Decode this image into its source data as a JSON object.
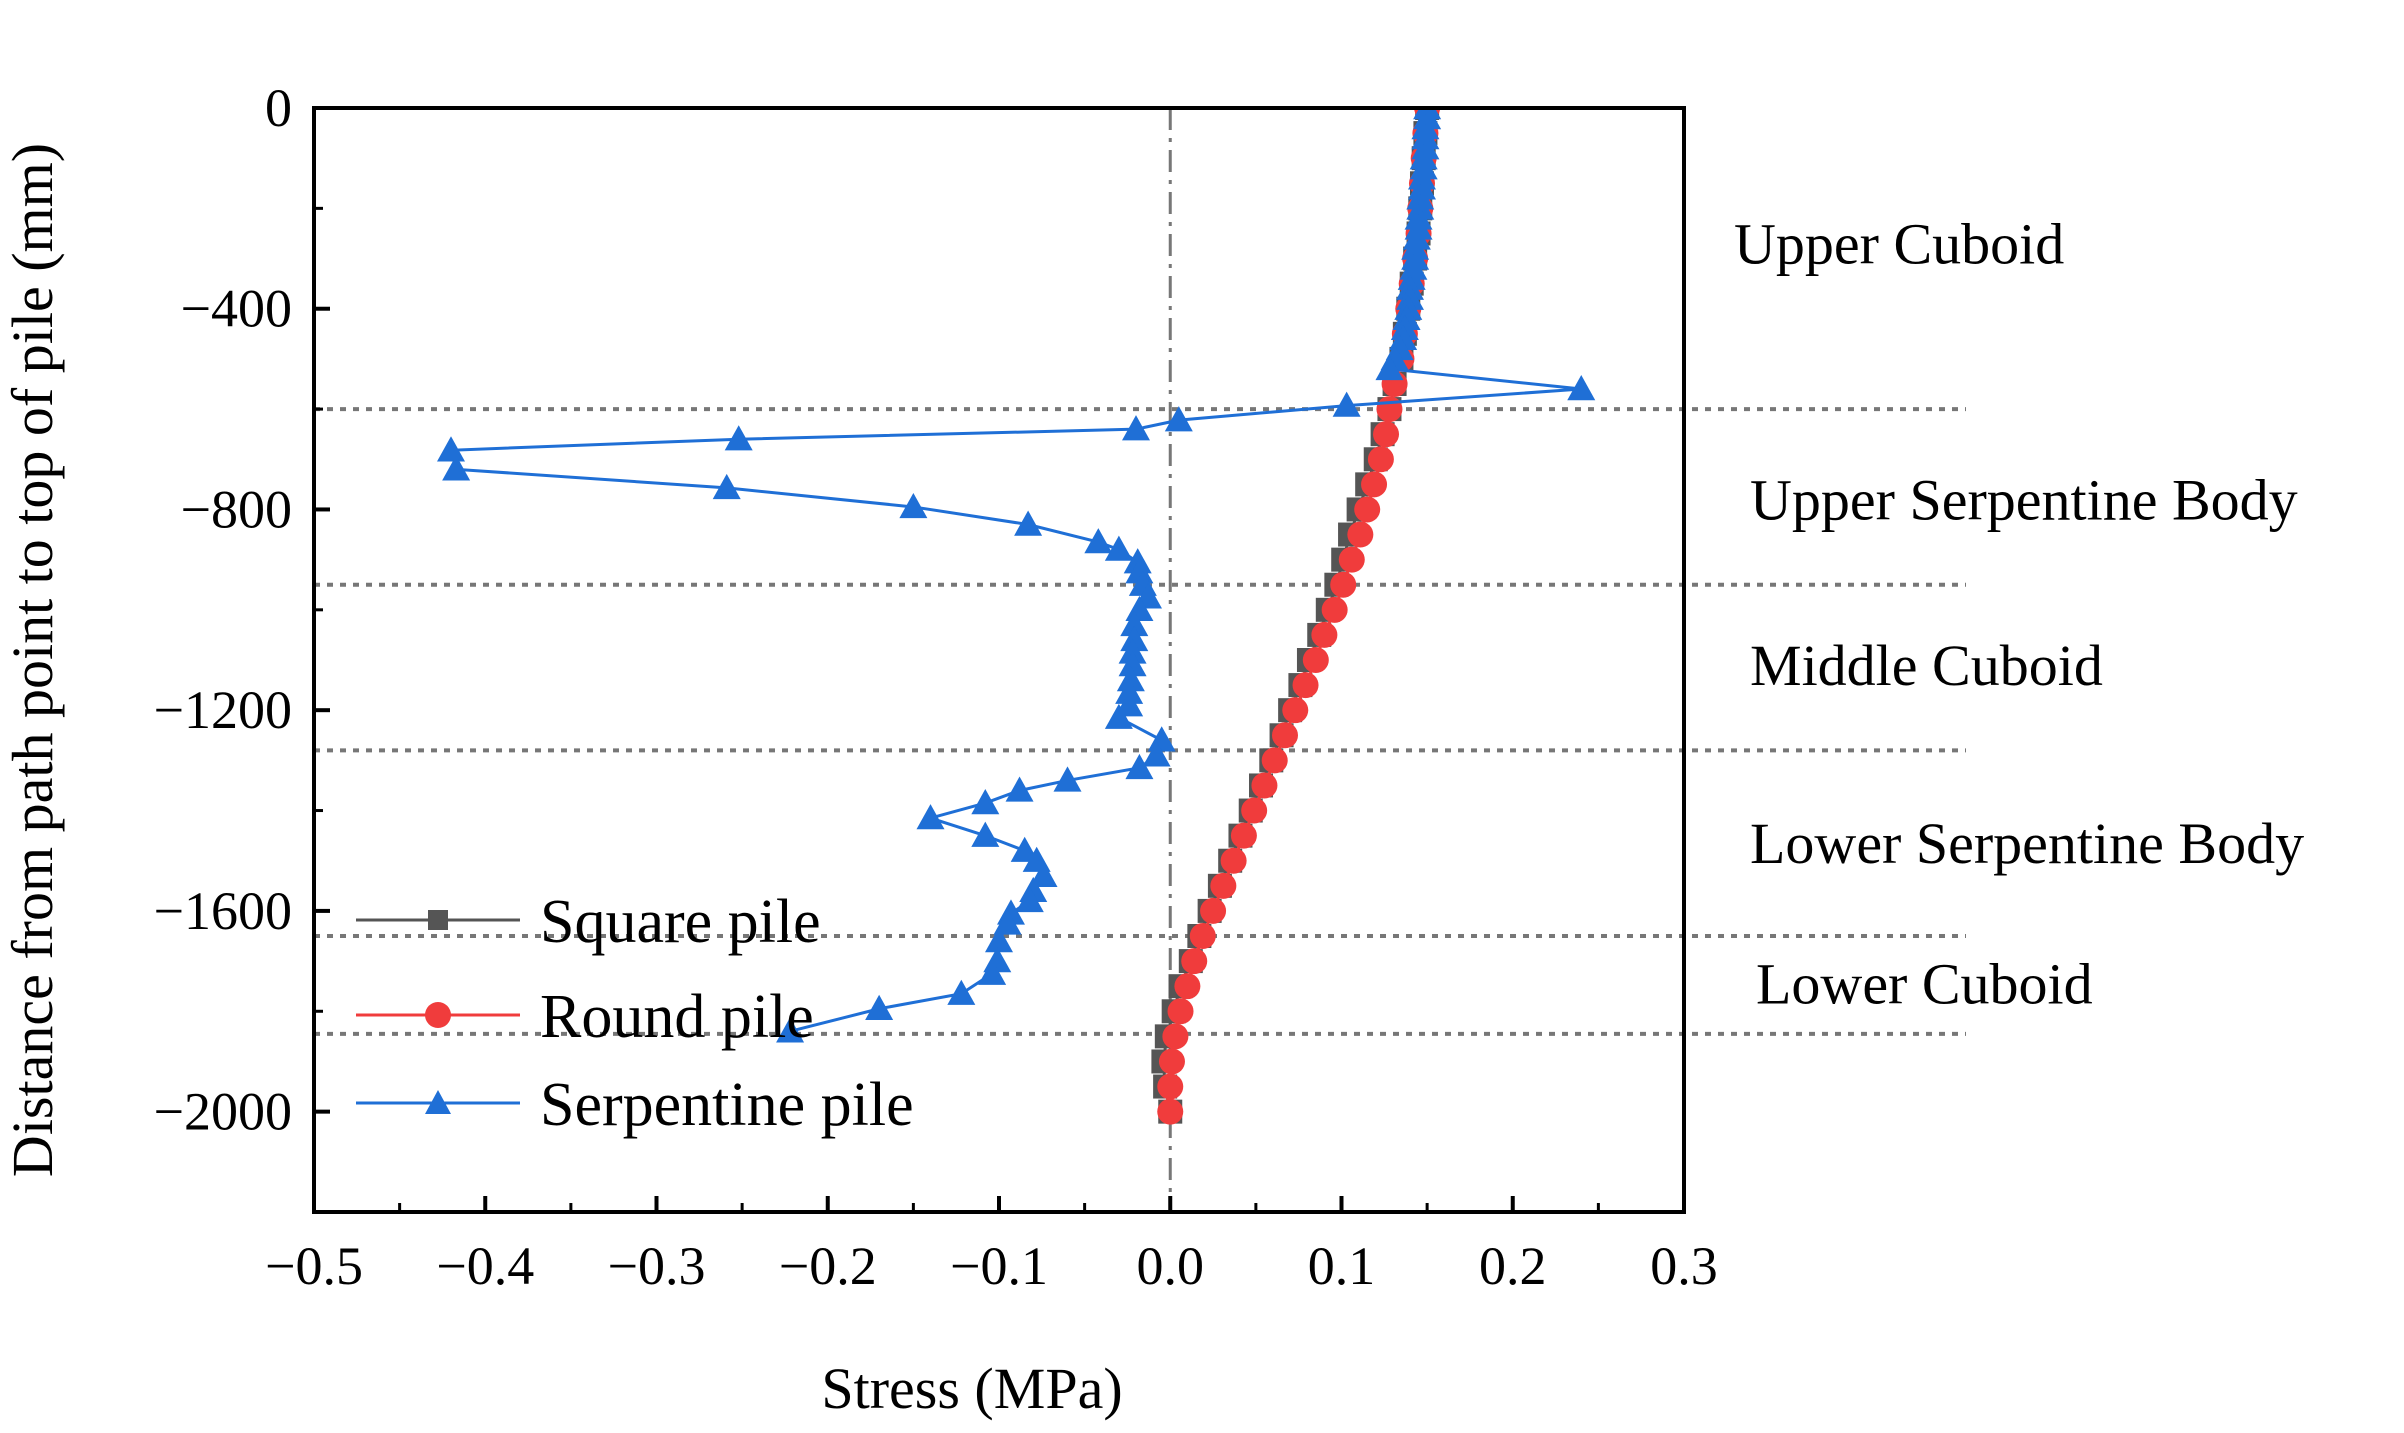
{
  "chart_data": {
    "type": "line",
    "title": "",
    "xlabel": "Stress (MPa)",
    "ylabel": "Distance from path point to top of pile (mm)",
    "xlim": [
      -0.5,
      0.3
    ],
    "ylim": [
      -2200,
      0
    ],
    "xticks": [
      -0.5,
      -0.4,
      -0.3,
      -0.2,
      -0.1,
      0.0,
      0.1,
      0.2,
      0.3
    ],
    "xtick_labels": [
      "−0.5",
      "−0.4",
      "−0.3",
      "−0.2",
      "−0.1",
      "0.0",
      "0.1",
      "0.2",
      "0.3"
    ],
    "yticks": [
      0,
      -400,
      -800,
      -1200,
      -1600,
      -2000
    ],
    "ytick_labels": [
      "0",
      "−400",
      "−800",
      "−1200",
      "−1600",
      "−2000"
    ],
    "reference_line_x": 0.0,
    "region_boundaries": [
      -600,
      -950,
      -1280,
      -1650,
      -1845
    ],
    "regions": [
      {
        "label": "Upper Cuboid",
        "y": -270
      },
      {
        "label": "Upper Serpentine Body",
        "y": -780
      },
      {
        "label": "Middle Cuboid",
        "y": -1110
      },
      {
        "label": "Lower Serpentine Body",
        "y": -1465
      },
      {
        "label": "Lower Cuboid",
        "y": -1745
      }
    ],
    "legend": {
      "position": "bottom-left"
    },
    "series": [
      {
        "name": "Square pile",
        "color": "#555555",
        "marker": "square",
        "points": [
          [
            0.15,
            0
          ],
          [
            0.149,
            -50
          ],
          [
            0.148,
            -100
          ],
          [
            0.147,
            -150
          ],
          [
            0.146,
            -200
          ],
          [
            0.145,
            -250
          ],
          [
            0.143,
            -300
          ],
          [
            0.141,
            -350
          ],
          [
            0.139,
            -400
          ],
          [
            0.137,
            -450
          ],
          [
            0.135,
            -500
          ],
          [
            0.131,
            -550
          ],
          [
            0.128,
            -600
          ],
          [
            0.124,
            -650
          ],
          [
            0.12,
            -700
          ],
          [
            0.115,
            -750
          ],
          [
            0.11,
            -800
          ],
          [
            0.105,
            -850
          ],
          [
            0.101,
            -900
          ],
          [
            0.097,
            -950
          ],
          [
            0.092,
            -1000
          ],
          [
            0.087,
            -1050
          ],
          [
            0.081,
            -1100
          ],
          [
            0.076,
            -1150
          ],
          [
            0.07,
            -1200
          ],
          [
            0.065,
            -1250
          ],
          [
            0.059,
            -1300
          ],
          [
            0.053,
            -1350
          ],
          [
            0.047,
            -1400
          ],
          [
            0.041,
            -1450
          ],
          [
            0.035,
            -1500
          ],
          [
            0.029,
            -1550
          ],
          [
            0.023,
            -1600
          ],
          [
            0.017,
            -1650
          ],
          [
            0.012,
            -1700
          ],
          [
            0.006,
            -1750
          ],
          [
            0.002,
            -1800
          ],
          [
            -0.002,
            -1850
          ],
          [
            -0.004,
            -1900
          ],
          [
            -0.003,
            -1950
          ],
          [
            0.0,
            -2000
          ]
        ]
      },
      {
        "name": "Round pile",
        "color": "#f03c3c",
        "marker": "circle",
        "points": [
          [
            0.15,
            0
          ],
          [
            0.149,
            -50
          ],
          [
            0.148,
            -100
          ],
          [
            0.147,
            -150
          ],
          [
            0.146,
            -200
          ],
          [
            0.145,
            -250
          ],
          [
            0.143,
            -300
          ],
          [
            0.141,
            -350
          ],
          [
            0.139,
            -400
          ],
          [
            0.137,
            -450
          ],
          [
            0.135,
            -500
          ],
          [
            0.131,
            -550
          ],
          [
            0.128,
            -600
          ],
          [
            0.126,
            -650
          ],
          [
            0.123,
            -700
          ],
          [
            0.119,
            -750
          ],
          [
            0.115,
            -800
          ],
          [
            0.111,
            -850
          ],
          [
            0.106,
            -900
          ],
          [
            0.101,
            -950
          ],
          [
            0.096,
            -1000
          ],
          [
            0.09,
            -1050
          ],
          [
            0.085,
            -1100
          ],
          [
            0.079,
            -1150
          ],
          [
            0.073,
            -1200
          ],
          [
            0.067,
            -1250
          ],
          [
            0.061,
            -1300
          ],
          [
            0.055,
            -1350
          ],
          [
            0.049,
            -1400
          ],
          [
            0.043,
            -1450
          ],
          [
            0.037,
            -1500
          ],
          [
            0.031,
            -1550
          ],
          [
            0.025,
            -1600
          ],
          [
            0.019,
            -1650
          ],
          [
            0.014,
            -1700
          ],
          [
            0.01,
            -1750
          ],
          [
            0.006,
            -1800
          ],
          [
            0.003,
            -1850
          ],
          [
            0.001,
            -1900
          ],
          [
            0.0,
            -1950
          ],
          [
            0.0,
            -2000
          ]
        ]
      },
      {
        "name": "Serpentine pile",
        "color": "#1f6fd6",
        "marker": "triangle",
        "points": [
          [
            0.15,
            0
          ],
          [
            0.15,
            -20
          ],
          [
            0.149,
            -40
          ],
          [
            0.149,
            -60
          ],
          [
            0.149,
            -80
          ],
          [
            0.148,
            -100
          ],
          [
            0.148,
            -120
          ],
          [
            0.147,
            -140
          ],
          [
            0.147,
            -160
          ],
          [
            0.146,
            -180
          ],
          [
            0.146,
            -200
          ],
          [
            0.145,
            -220
          ],
          [
            0.145,
            -240
          ],
          [
            0.144,
            -260
          ],
          [
            0.143,
            -280
          ],
          [
            0.143,
            -300
          ],
          [
            0.142,
            -320
          ],
          [
            0.141,
            -340
          ],
          [
            0.14,
            -360
          ],
          [
            0.14,
            -380
          ],
          [
            0.139,
            -400
          ],
          [
            0.138,
            -420
          ],
          [
            0.137,
            -440
          ],
          [
            0.136,
            -460
          ],
          [
            0.134,
            -480
          ],
          [
            0.131,
            -500
          ],
          [
            0.128,
            -520
          ],
          [
            0.24,
            -560
          ],
          [
            0.103,
            -593
          ],
          [
            0.005,
            -622
          ],
          [
            -0.02,
            -640
          ],
          [
            -0.252,
            -660
          ],
          [
            -0.42,
            -682
          ],
          [
            -0.417,
            -720
          ],
          [
            -0.259,
            -757
          ],
          [
            -0.15,
            -795
          ],
          [
            -0.083,
            -830
          ],
          [
            -0.042,
            -865
          ],
          [
            -0.03,
            -880
          ],
          [
            -0.019,
            -905
          ],
          [
            -0.018,
            -925
          ],
          [
            -0.016,
            -950
          ],
          [
            -0.013,
            -975
          ],
          [
            -0.018,
            -1000
          ],
          [
            -0.021,
            -1030
          ],
          [
            -0.021,
            -1060
          ],
          [
            -0.022,
            -1085
          ],
          [
            -0.022,
            -1110
          ],
          [
            -0.023,
            -1140
          ],
          [
            -0.024,
            -1165
          ],
          [
            -0.024,
            -1190
          ],
          [
            -0.03,
            -1215
          ],
          [
            -0.005,
            -1260
          ],
          [
            -0.008,
            -1290
          ],
          [
            -0.018,
            -1315
          ],
          [
            -0.06,
            -1340
          ],
          [
            -0.088,
            -1360
          ],
          [
            -0.108,
            -1385
          ],
          [
            -0.14,
            -1415
          ],
          [
            -0.108,
            -1450
          ],
          [
            -0.085,
            -1480
          ],
          [
            -0.078,
            -1500
          ],
          [
            -0.074,
            -1530
          ],
          [
            -0.08,
            -1560
          ],
          [
            -0.082,
            -1580
          ],
          [
            -0.093,
            -1605
          ],
          [
            -0.095,
            -1625
          ],
          [
            -0.1,
            -1660
          ],
          [
            -0.101,
            -1700
          ],
          [
            -0.104,
            -1725
          ],
          [
            -0.122,
            -1765
          ],
          [
            -0.17,
            -1795
          ],
          [
            -0.222,
            -1840
          ]
        ]
      }
    ]
  }
}
